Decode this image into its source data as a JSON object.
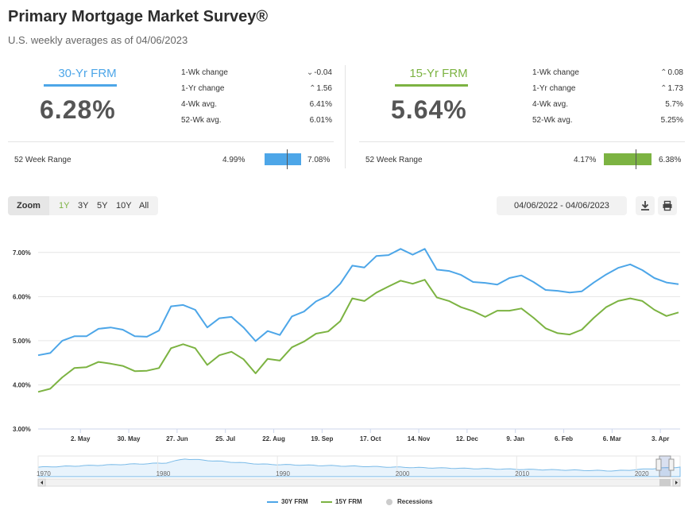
{
  "header": {
    "title": "Primary Mortgage Market Survey®",
    "subtitle": "U.S. weekly averages as of 04/06/2023"
  },
  "rates": [
    {
      "name": "30-Yr FRM",
      "color": "#4da6e8",
      "value": "6.28%",
      "stats": [
        {
          "label": "1-Wk change",
          "dir": "down",
          "value": "-0.04"
        },
        {
          "label": "1-Yr change",
          "dir": "up",
          "value": "1.56"
        },
        {
          "label": "4-Wk avg.",
          "dir": "",
          "value": "6.41%"
        },
        {
          "label": "52-Wk avg.",
          "dir": "",
          "value": "6.01%"
        }
      ],
      "range": {
        "label": "52 Week Range",
        "low": "4.99%",
        "high": "7.08%",
        "low_num": 4.99,
        "high_num": 7.08,
        "current_num": 6.28
      }
    },
    {
      "name": "15-Yr FRM",
      "color": "#7cb342",
      "value": "5.64%",
      "stats": [
        {
          "label": "1-Wk change",
          "dir": "up",
          "value": "0.08"
        },
        {
          "label": "1-Yr change",
          "dir": "up",
          "value": "1.73"
        },
        {
          "label": "4-Wk avg.",
          "dir": "",
          "value": "5.7%"
        },
        {
          "label": "52-Wk avg.",
          "dir": "",
          "value": "5.25%"
        }
      ],
      "range": {
        "label": "52 Week Range",
        "low": "4.17%",
        "high": "6.38%",
        "low_num": 4.17,
        "high_num": 6.38,
        "current_num": 5.64
      }
    }
  ],
  "toolbar": {
    "zoom_label": "Zoom",
    "zoom_options": [
      "1Y",
      "3Y",
      "5Y",
      "10Y",
      "All"
    ],
    "zoom_selected": "1Y",
    "date_range": "04/06/2022 - 04/06/2023"
  },
  "chart_data": {
    "type": "line",
    "ylim": [
      3.0,
      7.5
    ],
    "yticks": [
      3.0,
      4.0,
      5.0,
      6.0,
      7.0
    ],
    "ytick_labels": [
      "3.00%",
      "4.00%",
      "5.00%",
      "6.00%",
      "7.00%"
    ],
    "xticks": [
      {
        "week": 3.5,
        "label": "2. May"
      },
      {
        "week": 7.5,
        "label": "30. May"
      },
      {
        "week": 11.5,
        "label": "27. Jun"
      },
      {
        "week": 15.5,
        "label": "25. Jul"
      },
      {
        "week": 19.5,
        "label": "22. Aug"
      },
      {
        "week": 23.5,
        "label": "19. Sep"
      },
      {
        "week": 27.5,
        "label": "17. Oct"
      },
      {
        "week": 31.5,
        "label": "14. Nov"
      },
      {
        "week": 35.5,
        "label": "12. Dec"
      },
      {
        "week": 39.5,
        "label": "9. Jan"
      },
      {
        "week": 43.5,
        "label": "6. Feb"
      },
      {
        "week": 47.5,
        "label": "6. Mar"
      },
      {
        "week": 51.5,
        "label": "3. Apr"
      }
    ],
    "series": [
      {
        "name": "30Y FRM",
        "color": "#4da6e8",
        "values": [
          4.67,
          4.72,
          5.0,
          5.1,
          5.1,
          5.27,
          5.3,
          5.25,
          5.1,
          5.09,
          5.23,
          5.78,
          5.81,
          5.7,
          5.3,
          5.51,
          5.54,
          5.3,
          4.99,
          5.22,
          5.13,
          5.55,
          5.66,
          5.89,
          6.02,
          6.29,
          6.7,
          6.66,
          6.92,
          6.94,
          7.08,
          6.95,
          7.08,
          6.61,
          6.58,
          6.49,
          6.33,
          6.31,
          6.27,
          6.42,
          6.48,
          6.33,
          6.15,
          6.13,
          6.09,
          6.12,
          6.32,
          6.5,
          6.65,
          6.73,
          6.6,
          6.42,
          6.32,
          6.28
        ],
        "legend": "30Y FRM"
      },
      {
        "name": "15Y FRM",
        "color": "#7cb342",
        "values": [
          3.84,
          3.91,
          4.17,
          4.38,
          4.4,
          4.52,
          4.48,
          4.43,
          4.31,
          4.32,
          4.38,
          4.83,
          4.92,
          4.83,
          4.45,
          4.67,
          4.75,
          4.58,
          4.26,
          4.59,
          4.55,
          4.85,
          4.98,
          5.16,
          5.21,
          5.44,
          5.96,
          5.9,
          6.09,
          6.23,
          6.36,
          6.29,
          6.38,
          5.98,
          5.9,
          5.76,
          5.67,
          5.54,
          5.68,
          5.68,
          5.73,
          5.52,
          5.28,
          5.17,
          5.14,
          5.25,
          5.52,
          5.76,
          5.9,
          5.96,
          5.9,
          5.7,
          5.56,
          5.64
        ],
        "legend": "15Y FRM"
      }
    ],
    "navigator": {
      "years": [
        "1970",
        "1980",
        "1990",
        "2000",
        "2010",
        "2020"
      ]
    },
    "legend": [
      {
        "label": "30Y FRM",
        "color": "#4da6e8"
      },
      {
        "label": "15Y FRM",
        "color": "#7cb342"
      },
      {
        "label": "Recessions",
        "color": "#cccccc"
      }
    ]
  }
}
